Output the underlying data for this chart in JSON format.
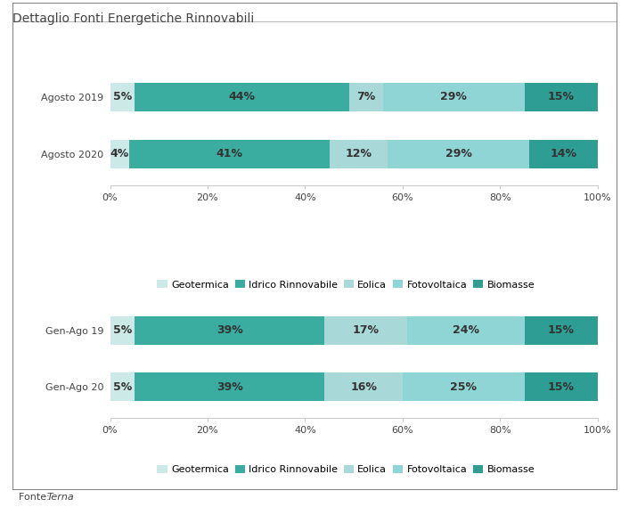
{
  "title": "Dettaglio Fonti Energetiche Rinnovabili",
  "categories_top": [
    "Agosto 2019",
    "Agosto 2020"
  ],
  "categories_bottom": [
    "Gen-Ago 19",
    "Gen-Ago 20"
  ],
  "series_labels": [
    "Geotermica",
    "Idrico Rinnovabile",
    "Eolica",
    "Fotovoltaica",
    "Biomasse"
  ],
  "colors": [
    "#cde9e7",
    "#3aada0",
    "#a8d8d8",
    "#90d5d5",
    "#2e9e94"
  ],
  "data_top": [
    [
      5,
      44,
      7,
      29,
      15
    ],
    [
      4,
      41,
      12,
      29,
      14
    ]
  ],
  "data_bottom": [
    [
      5,
      39,
      17,
      24,
      15
    ],
    [
      5,
      39,
      16,
      25,
      15
    ]
  ],
  "bar_height": 0.5,
  "bg_color": "#ffffff",
  "text_color": "#444444",
  "bar_text_color": "#333333",
  "title_fontsize": 10,
  "label_fontsize": 9,
  "tick_fontsize": 8,
  "legend_fontsize": 8,
  "fonte_fontsize": 8
}
